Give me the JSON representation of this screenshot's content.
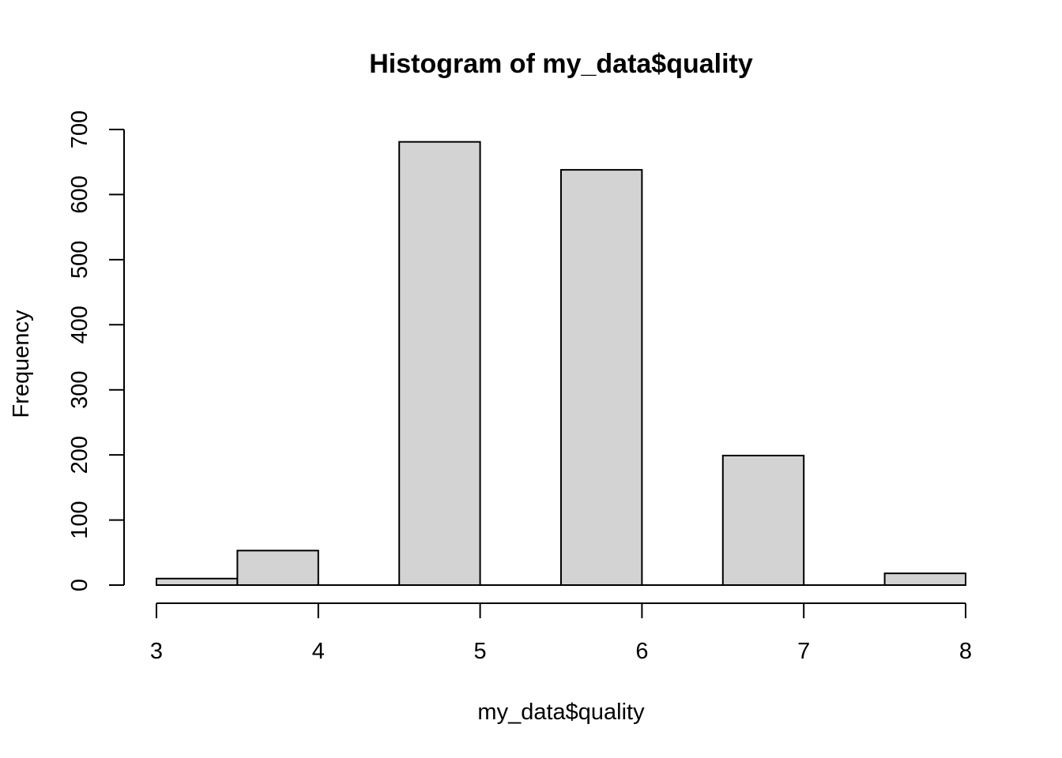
{
  "chart_data": {
    "type": "bar",
    "title": "Histogram of my_data$quality",
    "xlabel": "my_data$quality",
    "ylabel": "Frequency",
    "bins": [
      {
        "start": 3.0,
        "end": 3.5,
        "count": 10
      },
      {
        "start": 3.5,
        "end": 4.0,
        "count": 53
      },
      {
        "start": 4.0,
        "end": 4.5,
        "count": 0
      },
      {
        "start": 4.5,
        "end": 5.0,
        "count": 681
      },
      {
        "start": 5.0,
        "end": 5.5,
        "count": 0
      },
      {
        "start": 5.5,
        "end": 6.0,
        "count": 638
      },
      {
        "start": 6.0,
        "end": 6.5,
        "count": 0
      },
      {
        "start": 6.5,
        "end": 7.0,
        "count": 199
      },
      {
        "start": 7.0,
        "end": 7.5,
        "count": 0
      },
      {
        "start": 7.5,
        "end": 8.0,
        "count": 18
      }
    ],
    "xlim": [
      3,
      8
    ],
    "ylim": [
      0,
      700
    ],
    "x_ticks": [
      "3",
      "4",
      "5",
      "6",
      "7",
      "8"
    ],
    "y_ticks": [
      "0",
      "100",
      "200",
      "300",
      "400",
      "500",
      "600",
      "700"
    ],
    "grid": false,
    "legend": "none",
    "colors": {
      "bar_fill": "#d3d3d3",
      "bar_stroke": "#000000"
    }
  }
}
